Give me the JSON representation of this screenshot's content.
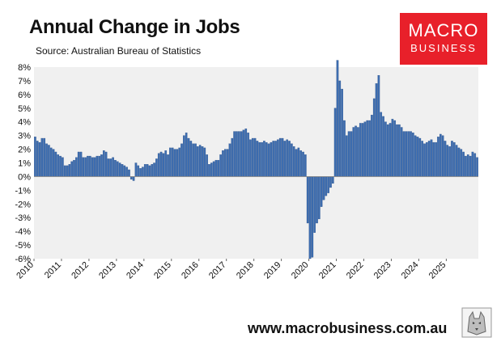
{
  "header": {
    "title": "Annual Change in Jobs",
    "source": "Source: Australian Bureau of Statistics"
  },
  "logo": {
    "line1": "MACRO",
    "line2": "BUSINESS"
  },
  "footer": {
    "url": "www.macrobusiness.com.au"
  },
  "colors": {
    "bar": "#3d6db0",
    "bar_edge": "#2a4f86",
    "plot_bg": "#f0f0f0",
    "logo_bg": "#e8202a"
  },
  "chart_data": {
    "type": "bar",
    "title": "Annual Change in Jobs",
    "ylabel": "",
    "xlabel": "",
    "ylim": [
      -6,
      8
    ],
    "yticks": [
      "-6%",
      "-5%",
      "-4%",
      "-3%",
      "-2%",
      "-1%",
      "0%",
      "1%",
      "2%",
      "3%",
      "4%",
      "5%",
      "6%",
      "7%",
      "8%"
    ],
    "xticks": [
      "2010",
      "2011",
      "2012",
      "2013",
      "2014",
      "2015",
      "2016",
      "2017",
      "2018",
      "2019",
      "2020",
      "2021",
      "2022",
      "2023",
      "2024",
      "2025"
    ],
    "x_start": "2010-01",
    "frequency": "monthly",
    "grid": false,
    "series": [
      {
        "values": [
          2.9,
          2.6,
          2.5,
          2.8,
          2.8,
          2.4,
          2.3,
          2.1,
          2.0,
          1.8,
          1.6,
          1.5,
          1.4,
          0.8,
          0.8,
          0.9,
          1.1,
          1.2,
          1.4,
          1.8,
          1.8,
          1.4,
          1.4,
          1.5,
          1.5,
          1.4,
          1.4,
          1.5,
          1.5,
          1.6,
          1.9,
          1.8,
          1.3,
          1.3,
          1.4,
          1.2,
          1.1,
          1.0,
          0.9,
          0.8,
          0.7,
          0.5,
          -0.2,
          -0.3,
          1.0,
          0.8,
          0.6,
          0.7,
          0.9,
          0.9,
          0.8,
          0.9,
          1.0,
          1.3,
          1.7,
          1.8,
          1.7,
          1.9,
          1.6,
          2.1,
          2.1,
          2.0,
          2.0,
          2.1,
          2.4,
          3.0,
          3.2,
          2.8,
          2.6,
          2.4,
          2.4,
          2.2,
          2.3,
          2.2,
          2.1,
          1.6,
          0.9,
          1.0,
          1.1,
          1.2,
          1.2,
          1.6,
          1.9,
          2.0,
          2.0,
          2.4,
          2.8,
          3.3,
          3.3,
          3.3,
          3.3,
          3.4,
          3.5,
          3.2,
          2.7,
          2.8,
          2.8,
          2.6,
          2.5,
          2.5,
          2.6,
          2.5,
          2.4,
          2.5,
          2.6,
          2.6,
          2.7,
          2.8,
          2.8,
          2.6,
          2.7,
          2.6,
          2.4,
          2.2,
          2.0,
          2.1,
          1.9,
          1.8,
          1.6,
          -3.4,
          -6.0,
          -5.9,
          -4.1,
          -3.4,
          -3.1,
          -2.2,
          -1.7,
          -1.4,
          -1.2,
          -0.8,
          -0.5,
          5.0,
          8.5,
          7.0,
          6.4,
          4.1,
          3.0,
          3.3,
          3.3,
          3.6,
          3.7,
          3.6,
          3.9,
          3.9,
          4.0,
          4.1,
          4.1,
          4.5,
          5.7,
          6.8,
          7.4,
          4.7,
          4.4,
          4.0,
          3.8,
          3.9,
          4.2,
          4.1,
          3.8,
          3.8,
          3.6,
          3.3,
          3.3,
          3.3,
          3.3,
          3.2,
          3.0,
          2.9,
          2.8,
          2.6,
          2.4,
          2.5,
          2.6,
          2.7,
          2.5,
          2.5,
          2.9,
          3.1,
          3.0,
          2.6,
          2.3,
          2.2,
          2.6,
          2.5,
          2.3,
          2.1,
          2.0,
          1.8,
          1.5,
          1.6,
          1.5,
          1.8,
          1.7,
          1.4
        ]
      }
    ]
  }
}
